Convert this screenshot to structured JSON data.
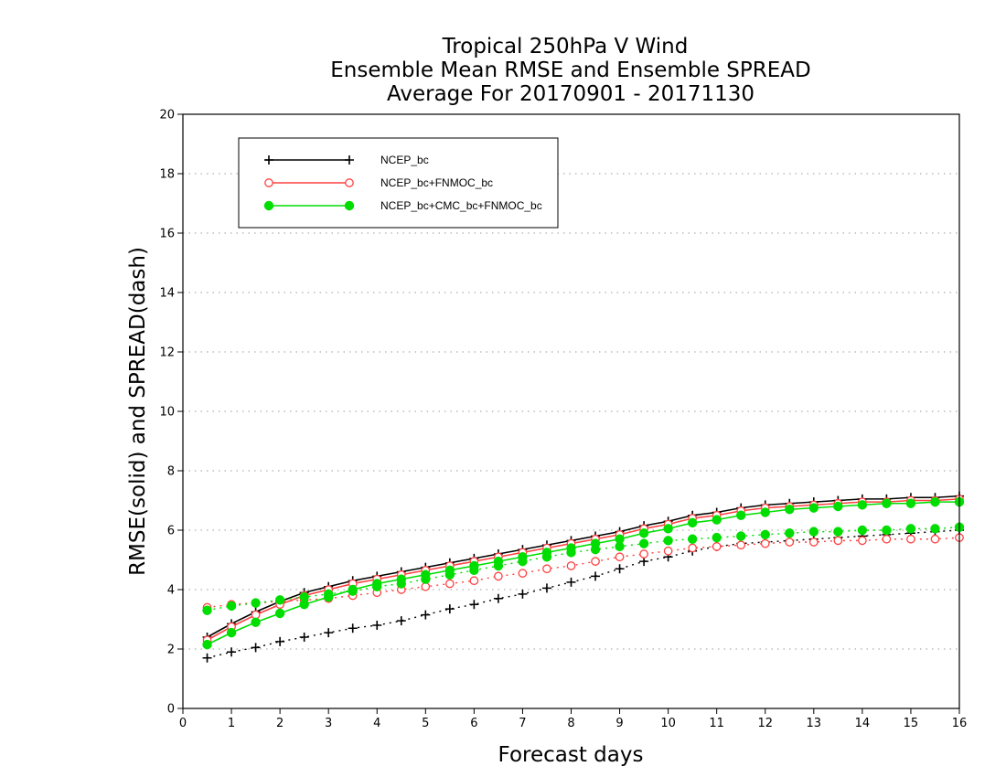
{
  "chart_data": {
    "type": "line",
    "title": [
      "Tropical 250hPa V Wind",
      "Ensemble Mean RMSE and Ensemble SPREAD",
      "Average For 20170901 - 20171130"
    ],
    "xlabel": "Forecast days",
    "ylabel": "RMSE(solid) and SPREAD(dash)",
    "xlim": [
      0,
      16
    ],
    "ylim": [
      0,
      20
    ],
    "xticks": [
      "0",
      "1",
      "2",
      "3",
      "4",
      "5",
      "6",
      "7",
      "8",
      "9",
      "10",
      "11",
      "12",
      "13",
      "14",
      "15",
      "16"
    ],
    "yticks": [
      "0",
      "2",
      "4",
      "6",
      "8",
      "10",
      "12",
      "14",
      "16",
      "18",
      "20"
    ],
    "grid": "horizontal dotted",
    "legend_position": "top-left",
    "x": [
      0.5,
      1,
      1.5,
      2,
      2.5,
      3,
      3.5,
      4,
      4.5,
      5,
      5.5,
      6,
      6.5,
      7,
      7.5,
      8,
      8.5,
      9,
      9.5,
      10,
      10.5,
      11,
      11.5,
      12,
      12.5,
      13,
      13.5,
      14,
      14.5,
      15,
      15.5,
      16
    ],
    "series": [
      {
        "name": "NCEP_bc",
        "color": "#000000",
        "marker": "plus",
        "rmse": [
          2.4,
          2.85,
          3.25,
          3.6,
          3.9,
          4.1,
          4.3,
          4.45,
          4.6,
          4.75,
          4.9,
          5.05,
          5.2,
          5.35,
          5.5,
          5.65,
          5.8,
          5.95,
          6.15,
          6.3,
          6.5,
          6.6,
          6.75,
          6.85,
          6.9,
          6.95,
          7.0,
          7.05,
          7.05,
          7.1,
          7.1,
          7.15
        ],
        "spread": [
          1.7,
          1.9,
          2.05,
          2.25,
          2.4,
          2.55,
          2.7,
          2.8,
          2.95,
          3.15,
          3.35,
          3.5,
          3.7,
          3.85,
          4.05,
          4.25,
          4.45,
          4.7,
          4.95,
          5.1,
          5.3,
          5.45,
          5.55,
          5.6,
          5.65,
          5.7,
          5.75,
          5.8,
          5.85,
          5.9,
          5.95,
          6.0
        ]
      },
      {
        "name": "NCEP_bc+FNMOC_bc",
        "color": "#ff4040",
        "marker": "open-circle",
        "rmse": [
          2.3,
          2.75,
          3.15,
          3.5,
          3.8,
          4.0,
          4.2,
          4.35,
          4.5,
          4.65,
          4.8,
          4.95,
          5.1,
          5.25,
          5.4,
          5.55,
          5.7,
          5.85,
          6.05,
          6.2,
          6.4,
          6.5,
          6.65,
          6.75,
          6.8,
          6.85,
          6.9,
          6.95,
          6.95,
          7.0,
          7.0,
          7.05
        ],
        "spread": [
          3.4,
          3.5,
          3.55,
          3.6,
          3.65,
          3.7,
          3.8,
          3.9,
          4.0,
          4.1,
          4.2,
          4.3,
          4.45,
          4.55,
          4.7,
          4.8,
          4.95,
          5.1,
          5.2,
          5.3,
          5.4,
          5.45,
          5.5,
          5.55,
          5.6,
          5.6,
          5.65,
          5.65,
          5.7,
          5.7,
          5.7,
          5.75
        ]
      },
      {
        "name": "NCEP_bc+CMC_bc+FNMOC_bc",
        "color": "#00dd00",
        "marker": "filled-circle",
        "rmse": [
          2.15,
          2.55,
          2.9,
          3.2,
          3.5,
          3.75,
          4.0,
          4.2,
          4.35,
          4.5,
          4.65,
          4.8,
          4.95,
          5.1,
          5.25,
          5.4,
          5.55,
          5.7,
          5.9,
          6.05,
          6.25,
          6.35,
          6.5,
          6.6,
          6.7,
          6.75,
          6.8,
          6.85,
          6.9,
          6.9,
          6.95,
          6.95
        ],
        "spread": [
          3.3,
          3.45,
          3.55,
          3.65,
          3.75,
          3.85,
          3.95,
          4.1,
          4.2,
          4.35,
          4.5,
          4.65,
          4.8,
          4.95,
          5.1,
          5.25,
          5.35,
          5.45,
          5.55,
          5.65,
          5.7,
          5.75,
          5.8,
          5.85,
          5.9,
          5.95,
          5.95,
          6.0,
          6.0,
          6.05,
          6.05,
          6.1
        ]
      }
    ]
  }
}
